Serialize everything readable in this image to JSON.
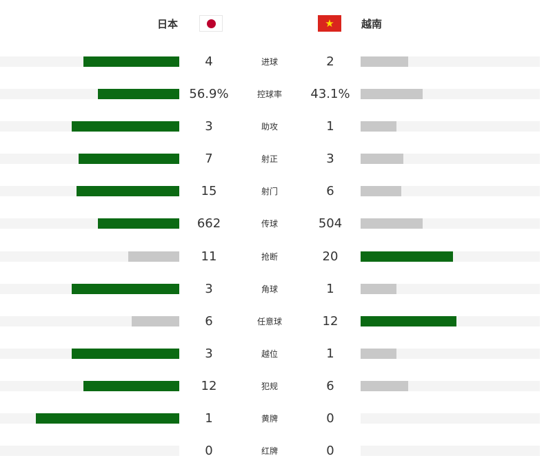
{
  "home_team": {
    "name": "日本",
    "flag_icon": "japan-flag-icon"
  },
  "away_team": {
    "name": "越南",
    "flag_icon": "vietnam-flag-icon"
  },
  "colors": {
    "leader": "#0b6a13",
    "trailer": "#c8c8c8",
    "track": "#f4f4f4"
  },
  "stats": [
    {
      "label": "进球",
      "home": "4",
      "away": "2",
      "home_share": 0.6667,
      "away_share": 0.3333
    },
    {
      "label": "控球率",
      "home": "56.9%",
      "away": "43.1%",
      "home_share": 0.569,
      "away_share": 0.431
    },
    {
      "label": "助攻",
      "home": "3",
      "away": "1",
      "home_share": 0.75,
      "away_share": 0.25
    },
    {
      "label": "射正",
      "home": "7",
      "away": "3",
      "home_share": 0.7,
      "away_share": 0.3
    },
    {
      "label": "射门",
      "home": "15",
      "away": "6",
      "home_share": 0.7143,
      "away_share": 0.2857
    },
    {
      "label": "传球",
      "home": "662",
      "away": "504",
      "home_share": 0.5678,
      "away_share": 0.4322
    },
    {
      "label": "抢断",
      "home": "11",
      "away": "20",
      "home_share": 0.3548,
      "away_share": 0.6452
    },
    {
      "label": "角球",
      "home": "3",
      "away": "1",
      "home_share": 0.75,
      "away_share": 0.25
    },
    {
      "label": "任意球",
      "home": "6",
      "away": "12",
      "home_share": 0.3333,
      "away_share": 0.6667
    },
    {
      "label": "越位",
      "home": "3",
      "away": "1",
      "home_share": 0.75,
      "away_share": 0.25
    },
    {
      "label": "犯规",
      "home": "12",
      "away": "6",
      "home_share": 0.6667,
      "away_share": 0.3333
    },
    {
      "label": "黄牌",
      "home": "1",
      "away": "0",
      "home_share": 1.0,
      "away_share": 0.0
    },
    {
      "label": "红牌",
      "home": "0",
      "away": "0",
      "home_share": 0.0,
      "away_share": 0.0
    }
  ]
}
